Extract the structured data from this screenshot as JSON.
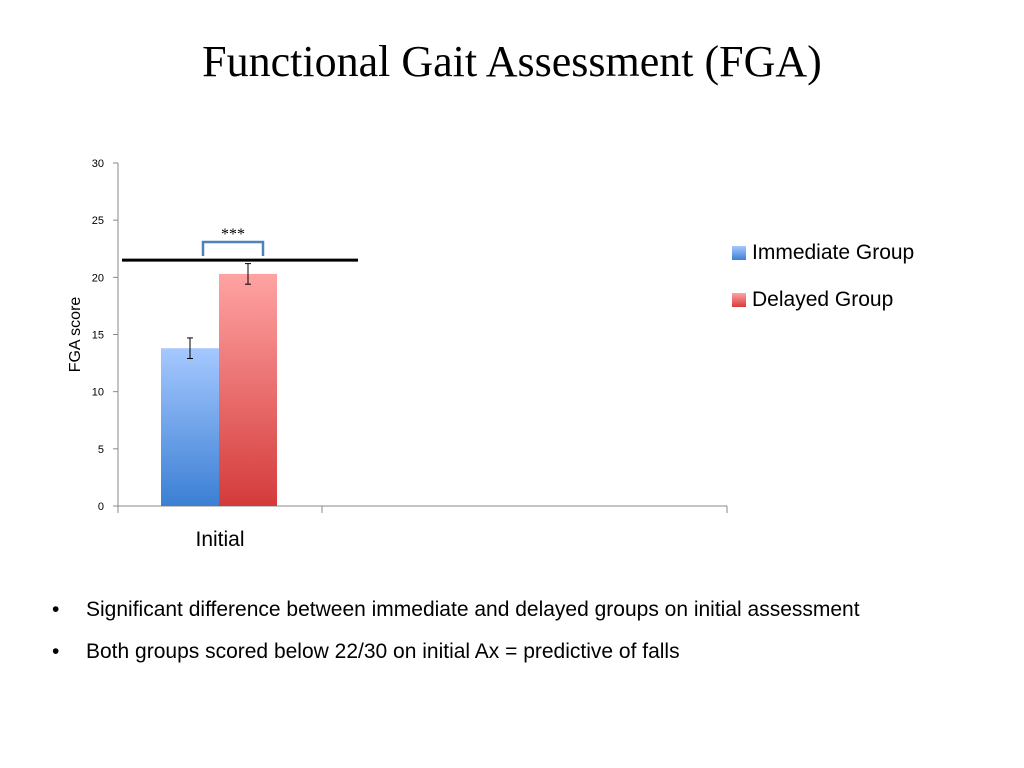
{
  "slide": {
    "title": "Functional Gait Assessment (FGA)",
    "bullets": [
      "Significant difference between immediate and delayed groups on initial assessment",
      "Both groups scored below 22/30 on initial Ax = predictive of falls"
    ],
    "bullet_glyph": "•"
  },
  "chart_data": {
    "type": "bar",
    "categories": [
      "Initial"
    ],
    "series": [
      {
        "name": "Immediate Group",
        "values": [
          13.8
        ],
        "error": [
          0.9
        ],
        "color_top": "#a6c8ff",
        "color_bottom": "#3b7fd4"
      },
      {
        "name": "Delayed Group",
        "values": [
          20.3
        ],
        "error": [
          0.9
        ],
        "color_top": "#ffa3a3",
        "color_bottom": "#d43b3b"
      }
    ],
    "ylabel": "FGA score",
    "ylim": [
      0,
      30
    ],
    "yticks": [
      0,
      5,
      10,
      15,
      20,
      25,
      30
    ],
    "threshold_line": 21.5,
    "significance": "***",
    "legend_position": "right",
    "bracket_color": "#4f81bd"
  }
}
